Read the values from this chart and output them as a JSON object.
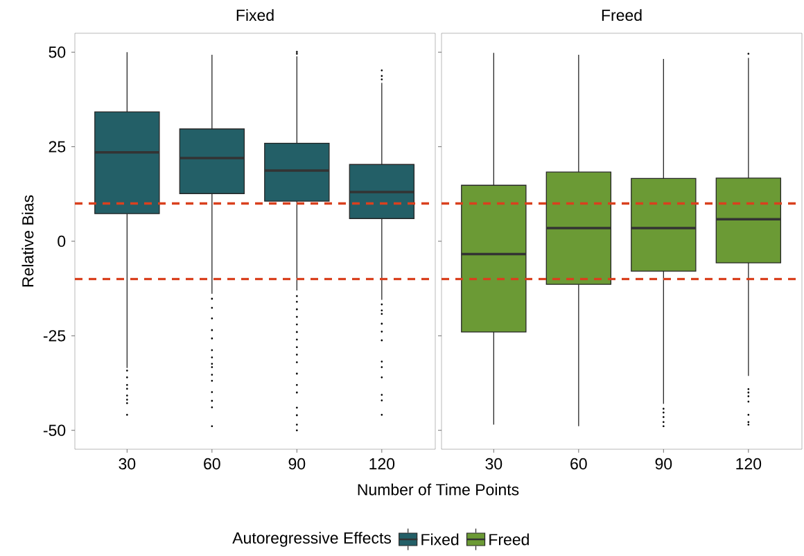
{
  "chart_data": [
    {
      "type": "box",
      "title": "Fixed",
      "xlabel": "Number of Time Points",
      "ylabel": "Relative Bias",
      "legend_title": "Autoregressive Effects",
      "legend": "bottom",
      "marker": "circle",
      "categories": [
        "30",
        "60",
        "90",
        "120"
      ],
      "ylim": [
        -55,
        55
      ],
      "yticks": [
        -50,
        -25,
        0,
        25,
        50
      ],
      "series": [
        {
          "name": "Fixed",
          "color": "#235f67",
          "boxes": [
            {
              "low": -33.5,
              "q1": 7.3,
              "median": 23.5,
              "q3": 34.2,
              "high": 50,
              "outliers": [
                -34.2,
                -36,
                -38,
                -39,
                -40.8,
                -41.9,
                -42.8,
                -45.9
              ]
            },
            {
              "low": -13.9,
              "q1": 12.6,
              "median": 22.0,
              "q3": 29.7,
              "high": 49.3,
              "outliers": [
                -15.2,
                -17.6,
                -20.4,
                -23.5,
                -25.7,
                -28.8,
                -30.7,
                -32.4,
                -33.3,
                -35.3,
                -36.9,
                -39.9,
                -42.2,
                -43.9,
                -48.9
              ]
            },
            {
              "low": -13.0,
              "q1": 10.6,
              "median": 18.7,
              "q3": 25.9,
              "high": 48.9,
              "outliers": [
                49.6,
                50.1,
                -14.5,
                -16,
                -18,
                -20,
                -22,
                -24,
                -26,
                -28,
                -30,
                -32,
                -35,
                -38,
                -40,
                -44,
                -46,
                -48.5,
                -50
              ]
            },
            {
              "low": -15.5,
              "q1": 6.0,
              "median": 13.0,
              "q3": 20.3,
              "high": 41.9,
              "outliers": [
                42.8,
                43.7,
                45.2,
                -16.7,
                -18.3,
                -19.2,
                -21.8,
                -23.9,
                -26.2,
                -31.8,
                -33.3,
                -36,
                -40.6,
                -42.1,
                -45.9
              ]
            }
          ]
        }
      ],
      "ref_lines": [
        {
          "axis": "y",
          "value": 10,
          "color": "#d9401e",
          "line_style": "dashed"
        },
        {
          "axis": "y",
          "value": -10,
          "color": "#d9401e",
          "line_style": "dashed"
        }
      ]
    },
    {
      "type": "box",
      "title": "Freed",
      "marker": "circle",
      "tick_labels": "x",
      "categories": [
        "30",
        "60",
        "90",
        "120"
      ],
      "ylim": [
        -55,
        55
      ],
      "yticks": [
        -50,
        -25,
        0,
        25,
        50
      ],
      "series": [
        {
          "name": "Freed",
          "color": "#6b9a35",
          "boxes": [
            {
              "low": -48.5,
              "q1": -24.0,
              "median": -3.4,
              "q3": 14.8,
              "high": 49.8
            },
            {
              "low": -48.9,
              "q1": -11.4,
              "median": 3.5,
              "q3": 18.3,
              "high": 49.3
            },
            {
              "low": -43.0,
              "q1": -7.9,
              "median": 3.5,
              "q3": 16.6,
              "high": 48.2,
              "outliers": [
                -44.3,
                -45.3,
                -46.5,
                -47.8,
                -48.9
              ]
            },
            {
              "low": -35.6,
              "q1": -5.7,
              "median": 5.8,
              "q3": 16.7,
              "high": 48.5,
              "outliers": [
                49.6,
                -39.1,
                -40,
                -41,
                -42.4,
                -45.9,
                -47.8,
                -48.5
              ]
            }
          ]
        }
      ],
      "ref_lines": [
        {
          "axis": "y",
          "value": 10,
          "color": "#d9401e",
          "line_style": "dashed"
        },
        {
          "axis": "y",
          "value": -10,
          "color": "#d9401e",
          "line_style": "dashed"
        }
      ]
    }
  ]
}
